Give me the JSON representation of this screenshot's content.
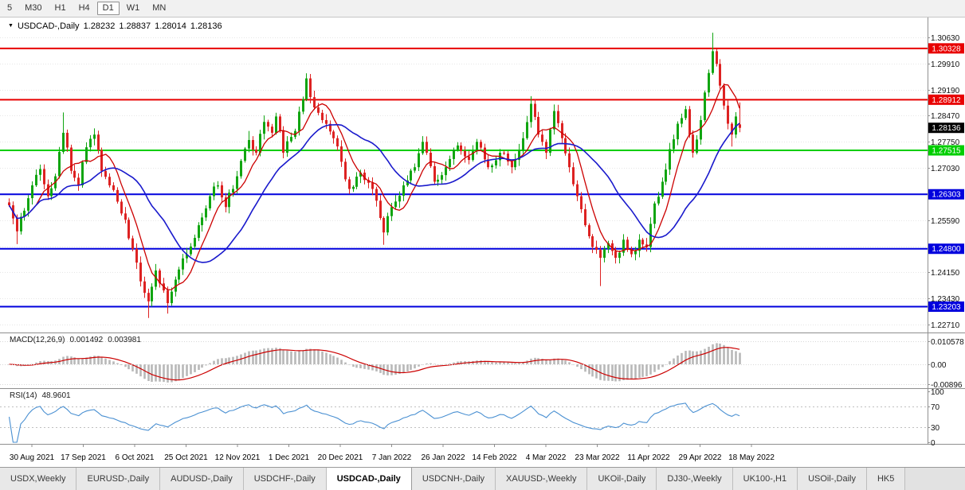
{
  "toolbar": {
    "timeframes": [
      "5",
      "M30",
      "H1",
      "H4",
      "D1",
      "W1",
      "MN"
    ],
    "active": "D1"
  },
  "chart": {
    "title": "USDCAD-,Daily",
    "ohlc": {
      "open": "1.28232",
      "high": "1.28837",
      "low": "1.28014",
      "close": "1.28136"
    }
  },
  "chart_data": {
    "type": "candlestick",
    "symbol": "USDCAD-",
    "period": "Daily",
    "candle_count": 190,
    "price_axis": {
      "tick_labels": [
        "1.30630",
        "1.29910",
        "1.29190",
        "1.28470",
        "1.27750",
        "1.27030",
        "1.26310",
        "1.25590",
        "1.24870",
        "1.24150",
        "1.23430",
        "1.22710"
      ]
    },
    "x_labels": [
      "30 Aug 2021",
      "17 Sep 2021",
      "6 Oct 2021",
      "25 Oct 2021",
      "12 Nov 2021",
      "1 Dec 2021",
      "20 Dec 2021",
      "7 Jan 2022",
      "26 Jan 2022",
      "14 Feb 2022",
      "4 Mar 2022",
      "23 Mar 2022",
      "11 Apr 2022",
      "29 Apr 2022",
      "18 May 2022"
    ],
    "levels": [
      {
        "price": 1.30328,
        "label": "1.30328",
        "color": "#e80000"
      },
      {
        "price": 1.28912,
        "label": "1.28912",
        "color": "#e80000"
      },
      {
        "price": 1.27515,
        "label": "1.27515",
        "color": "#00ce00"
      },
      {
        "price": 1.26303,
        "label": "1.26303",
        "color": "#0000dd"
      },
      {
        "price": 1.248,
        "label": "1.24800",
        "color": "#0000dd"
      },
      {
        "price": 1.23203,
        "label": "1.23203",
        "color": "#0000dd"
      }
    ],
    "current_price": {
      "price": 1.28136,
      "label": "1.28136",
      "box_color": "#000000"
    },
    "close_waypoints": [
      [
        0,
        1.26
      ],
      [
        2,
        1.2528
      ],
      [
        4,
        1.2585
      ],
      [
        6,
        1.2655
      ],
      [
        8,
        1.27
      ],
      [
        10,
        1.2625
      ],
      [
        12,
        1.268
      ],
      [
        14,
        1.28
      ],
      [
        16,
        1.2695
      ],
      [
        18,
        1.2655
      ],
      [
        20,
        1.276
      ],
      [
        22,
        1.2795
      ],
      [
        24,
        1.2695
      ],
      [
        26,
        1.2655
      ],
      [
        28,
        1.261
      ],
      [
        30,
        1.256
      ],
      [
        32,
        1.248
      ],
      [
        34,
        1.239
      ],
      [
        36,
        1.2335
      ],
      [
        38,
        1.242
      ],
      [
        40,
        1.2365
      ],
      [
        41,
        1.233
      ],
      [
        43,
        1.2395
      ],
      [
        46,
        1.2465
      ],
      [
        49,
        1.2545
      ],
      [
        52,
        1.2625
      ],
      [
        54,
        1.2655
      ],
      [
        56,
        1.2595
      ],
      [
        59,
        1.268
      ],
      [
        62,
        1.278
      ],
      [
        64,
        1.2745
      ],
      [
        66,
        1.283
      ],
      [
        68,
        1.28
      ],
      [
        69,
        1.2845
      ],
      [
        71,
        1.2745
      ],
      [
        74,
        1.2805
      ],
      [
        77,
        1.295
      ],
      [
        79,
        1.287
      ],
      [
        81,
        1.2835
      ],
      [
        84,
        1.2785
      ],
      [
        86,
        1.272
      ],
      [
        88,
        1.2645
      ],
      [
        91,
        1.269
      ],
      [
        94,
        1.2645
      ],
      [
        96,
        1.2565
      ],
      [
        97,
        1.2525
      ],
      [
        99,
        1.2595
      ],
      [
        102,
        1.2655
      ],
      [
        105,
        1.2705
      ],
      [
        107,
        1.2775
      ],
      [
        108,
        1.2745
      ],
      [
        110,
        1.2665
      ],
      [
        113,
        1.2705
      ],
      [
        116,
        1.2765
      ],
      [
        119,
        1.2725
      ],
      [
        121,
        1.2775
      ],
      [
        124,
        1.2705
      ],
      [
        127,
        1.2745
      ],
      [
        130,
        1.2705
      ],
      [
        133,
        1.2785
      ],
      [
        135,
        1.288
      ],
      [
        137,
        1.2795
      ],
      [
        139,
        1.2745
      ],
      [
        141,
        1.286
      ],
      [
        143,
        1.2785
      ],
      [
        145,
        1.2705
      ],
      [
        147,
        1.2625
      ],
      [
        149,
        1.2545
      ],
      [
        151,
        1.2485
      ],
      [
        153,
        1.2455
      ],
      [
        155,
        1.2495
      ],
      [
        157,
        1.2455
      ],
      [
        159,
        1.2505
      ],
      [
        161,
        1.2465
      ],
      [
        163,
        1.2505
      ],
      [
        165,
        1.2485
      ],
      [
        167,
        1.2605
      ],
      [
        169,
        1.2665
      ],
      [
        171,
        1.2755
      ],
      [
        173,
        1.2825
      ],
      [
        175,
        1.2865
      ],
      [
        176,
        1.2795
      ],
      [
        177,
        1.2745
      ],
      [
        179,
        1.2835
      ],
      [
        181,
        1.2965
      ],
      [
        182,
        1.3025
      ],
      [
        183,
        1.299
      ],
      [
        184,
        1.293
      ],
      [
        185,
        1.2875
      ],
      [
        186,
        1.2825
      ],
      [
        187,
        1.2795
      ],
      [
        188,
        1.2845
      ],
      [
        189,
        1.28136
      ]
    ],
    "spikes": [
      {
        "i": 2,
        "l": 1.2493
      },
      {
        "i": 8,
        "h": 1.2712
      },
      {
        "i": 14,
        "h": 1.2856
      },
      {
        "i": 36,
        "l": 1.2289
      },
      {
        "i": 41,
        "l": 1.2301
      },
      {
        "i": 62,
        "h": 1.2805
      },
      {
        "i": 77,
        "h": 1.2964
      },
      {
        "i": 97,
        "l": 1.2491
      },
      {
        "i": 107,
        "h": 1.2788
      },
      {
        "i": 135,
        "h": 1.2901
      },
      {
        "i": 141,
        "h": 1.2878
      },
      {
        "i": 153,
        "l": 1.2377
      },
      {
        "i": 182,
        "h": 1.3076
      },
      {
        "i": 187,
        "l": 1.2762
      }
    ],
    "last_candle": {
      "o": 1.28232,
      "h": 1.28837,
      "l": 1.28014,
      "c": 1.28136
    },
    "macd": {
      "label": "MACD(12,26,9)",
      "value_main": "0.001492",
      "value_signal": "0.003981",
      "axis": [
        {
          "label": "0.010578",
          "value": 0.010578
        },
        {
          "label": "0.00",
          "value": 0
        },
        {
          "label": "-0.00896",
          "value": -0.00896
        }
      ]
    },
    "rsi": {
      "label": "RSI(14)",
      "value": "48.9601",
      "axis": [
        {
          "label": "100",
          "value": 100
        },
        {
          "label": "70",
          "value": 70
        },
        {
          "label": "30",
          "value": 30
        },
        {
          "label": "0",
          "value": 0
        }
      ],
      "dotted_levels": [
        70,
        30
      ]
    }
  },
  "colors": {
    "bull": "#11a511",
    "bear": "#dd2222",
    "ma_fast": "#cc0000",
    "ma_slow": "#1a1acc",
    "macd_hist": "#b8b8b8",
    "macd_signal": "#cc0000",
    "rsi_line": "#4a90d2",
    "grid": "#e6e6e6",
    "dotted_level": "#c0c0c0",
    "separator": "#8f8f8f",
    "axis_text": "#111111"
  },
  "tabs": {
    "items": [
      "USDX,Weekly",
      "EURUSD-,Daily",
      "AUDUSD-,Daily",
      "USDCHF-,Daily",
      "USDCAD-,Daily",
      "USDCNH-,Daily",
      "XAUUSD-,Weekly",
      "UKOil-,Daily",
      "DJ30-,Weekly",
      "UK100-,H1",
      "USOil-,Daily",
      "HK5"
    ],
    "active": "USDCAD-,Daily"
  }
}
